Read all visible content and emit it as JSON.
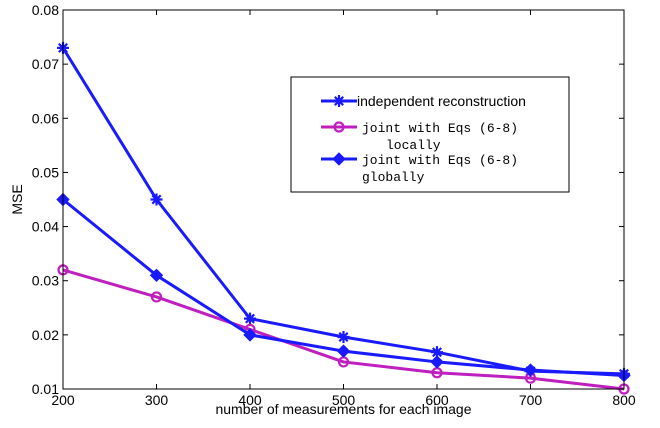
{
  "chart_data": {
    "type": "line",
    "title": "",
    "xlabel": "number of measurements for each image",
    "ylabel": "MSE",
    "xlim": [
      200,
      800
    ],
    "ylim": [
      0.01,
      0.08
    ],
    "xticks": [
      200,
      300,
      400,
      500,
      600,
      700,
      800
    ],
    "xtick_labels": [
      "200",
      "300",
      "400",
      "500",
      "600",
      "700",
      "800"
    ],
    "yticks": [
      0.01,
      0.02,
      0.03,
      0.04,
      0.05,
      0.06,
      0.07,
      0.08
    ],
    "ytick_labels": [
      "0.01",
      "0.02",
      "0.03",
      "0.04",
      "0.05",
      "0.06",
      "0.07",
      "0.08"
    ],
    "grid": false,
    "legend_position": "top-right",
    "x": [
      200,
      300,
      400,
      500,
      600,
      700,
      800
    ],
    "series": [
      {
        "name": "independent reconstruction",
        "legend_lines": [
          "independent reconstruction"
        ],
        "legend_font": "sans",
        "color": "#1a1aff",
        "marker": "star",
        "values": [
          0.073,
          0.045,
          0.023,
          0.0196,
          0.0168,
          0.0133,
          0.0128
        ]
      },
      {
        "name": "joint with Eqs (6-8) locally",
        "legend_lines": [
          "joint with Eqs (6-8)",
          "locally"
        ],
        "legend_font": "mono",
        "color": "#bf1fbf",
        "marker": "circle",
        "values": [
          0.032,
          0.027,
          0.021,
          0.015,
          0.013,
          0.012,
          0.01
        ]
      },
      {
        "name": "joint with Eqs (6-8) globally",
        "legend_lines": [
          "joint with Eqs (6-8)",
          "globally"
        ],
        "legend_font": "mono",
        "color": "#1a1aff",
        "marker": "diamond",
        "values": [
          0.045,
          0.031,
          0.02,
          0.017,
          0.015,
          0.0135,
          0.0125
        ]
      }
    ]
  }
}
